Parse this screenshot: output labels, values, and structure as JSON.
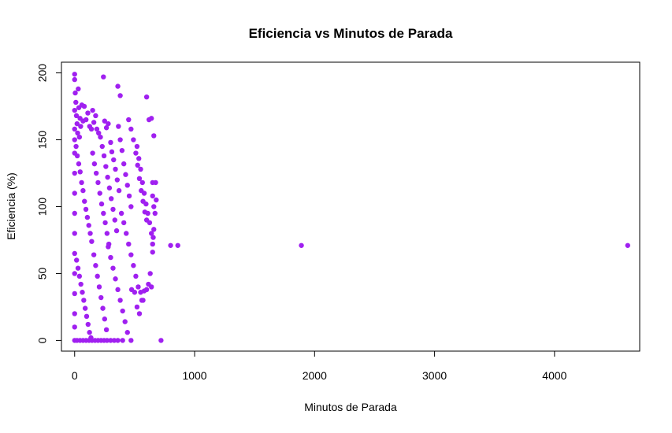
{
  "chart_data": {
    "type": "scatter",
    "title": "Eficiencia vs Minutos de Parada",
    "xlabel": "Minutos de Parada",
    "ylabel": "Eficiencia (%)",
    "xlim": [
      -110,
      4710
    ],
    "ylim": [
      -8,
      208
    ],
    "x_ticks": [
      0,
      1000,
      2000,
      3000,
      4000
    ],
    "y_ticks": [
      0,
      50,
      100,
      150,
      200
    ],
    "point_color": "#A020F0",
    "grid": false,
    "legend": "none",
    "series": [
      {
        "points": [
          [
            0,
            199
          ],
          [
            0,
            195
          ],
          [
            0,
            172
          ],
          [
            0,
            158
          ],
          [
            0,
            150
          ],
          [
            0,
            140
          ],
          [
            0,
            125
          ],
          [
            0,
            110
          ],
          [
            0,
            95
          ],
          [
            0,
            80
          ],
          [
            0,
            65
          ],
          [
            0,
            50
          ],
          [
            0,
            35
          ],
          [
            0,
            20
          ],
          [
            0,
            10
          ],
          [
            0,
            0
          ],
          [
            5,
            185
          ],
          [
            10,
            178
          ],
          [
            15,
            168
          ],
          [
            20,
            162
          ],
          [
            25,
            155
          ],
          [
            30,
            188
          ],
          [
            35,
            174
          ],
          [
            40,
            152
          ],
          [
            45,
            166
          ],
          [
            50,
            160
          ],
          [
            60,
            176
          ],
          [
            70,
            164
          ],
          [
            12,
            145
          ],
          [
            22,
            138
          ],
          [
            34,
            132
          ],
          [
            46,
            126
          ],
          [
            58,
            118
          ],
          [
            70,
            112
          ],
          [
            82,
            104
          ],
          [
            94,
            98
          ],
          [
            106,
            92
          ],
          [
            118,
            86
          ],
          [
            130,
            80
          ],
          [
            142,
            74
          ],
          [
            16,
            60
          ],
          [
            28,
            54
          ],
          [
            40,
            48
          ],
          [
            52,
            42
          ],
          [
            64,
            36
          ],
          [
            76,
            30
          ],
          [
            88,
            24
          ],
          [
            100,
            18
          ],
          [
            112,
            12
          ],
          [
            124,
            6
          ],
          [
            136,
            2
          ],
          [
            20,
            0
          ],
          [
            45,
            0
          ],
          [
            70,
            0
          ],
          [
            95,
            0
          ],
          [
            120,
            0
          ],
          [
            145,
            0
          ],
          [
            170,
            0
          ],
          [
            195,
            0
          ],
          [
            220,
            0
          ],
          [
            245,
            0
          ],
          [
            270,
            0
          ],
          [
            300,
            0
          ],
          [
            330,
            0
          ],
          [
            360,
            0
          ],
          [
            400,
            0
          ],
          [
            470,
            0
          ],
          [
            720,
            0
          ],
          [
            80,
            175
          ],
          [
            95,
            165
          ],
          [
            110,
            170
          ],
          [
            125,
            160
          ],
          [
            140,
            158
          ],
          [
            150,
            172
          ],
          [
            160,
            163
          ],
          [
            175,
            168
          ],
          [
            185,
            158
          ],
          [
            200,
            155
          ],
          [
            150,
            140
          ],
          [
            165,
            132
          ],
          [
            180,
            125
          ],
          [
            195,
            118
          ],
          [
            210,
            110
          ],
          [
            225,
            102
          ],
          [
            240,
            95
          ],
          [
            255,
            88
          ],
          [
            270,
            80
          ],
          [
            285,
            72
          ],
          [
            160,
            64
          ],
          [
            175,
            56
          ],
          [
            190,
            48
          ],
          [
            205,
            40
          ],
          [
            220,
            32
          ],
          [
            235,
            24
          ],
          [
            250,
            16
          ],
          [
            265,
            8
          ],
          [
            215,
            152
          ],
          [
            230,
            145
          ],
          [
            245,
            138
          ],
          [
            260,
            130
          ],
          [
            275,
            122
          ],
          [
            290,
            114
          ],
          [
            305,
            106
          ],
          [
            320,
            98
          ],
          [
            335,
            90
          ],
          [
            350,
            82
          ],
          [
            240,
            197
          ],
          [
            250,
            164
          ],
          [
            265,
            159
          ],
          [
            280,
            162
          ],
          [
            300,
            148
          ],
          [
            310,
            141
          ],
          [
            325,
            135
          ],
          [
            340,
            128
          ],
          [
            355,
            120
          ],
          [
            370,
            112
          ],
          [
            280,
            70
          ],
          [
            300,
            62
          ],
          [
            320,
            54
          ],
          [
            340,
            46
          ],
          [
            360,
            38
          ],
          [
            380,
            30
          ],
          [
            400,
            22
          ],
          [
            420,
            14
          ],
          [
            440,
            6
          ],
          [
            380,
            183
          ],
          [
            360,
            190
          ],
          [
            365,
            160
          ],
          [
            380,
            150
          ],
          [
            395,
            142
          ],
          [
            410,
            132
          ],
          [
            425,
            124
          ],
          [
            440,
            116
          ],
          [
            455,
            108
          ],
          [
            470,
            100
          ],
          [
            390,
            95
          ],
          [
            410,
            88
          ],
          [
            430,
            80
          ],
          [
            450,
            72
          ],
          [
            470,
            64
          ],
          [
            490,
            56
          ],
          [
            510,
            48
          ],
          [
            530,
            40
          ],
          [
            550,
            36
          ],
          [
            570,
            30
          ],
          [
            450,
            165
          ],
          [
            470,
            158
          ],
          [
            490,
            150
          ],
          [
            510,
            140
          ],
          [
            525,
            131
          ],
          [
            540,
            121
          ],
          [
            555,
            112
          ],
          [
            570,
            104
          ],
          [
            585,
            96
          ],
          [
            600,
            90
          ],
          [
            475,
            38
          ],
          [
            500,
            36
          ],
          [
            520,
            25
          ],
          [
            540,
            20
          ],
          [
            560,
            30
          ],
          [
            580,
            37
          ],
          [
            600,
            38
          ],
          [
            615,
            42
          ],
          [
            630,
            50
          ],
          [
            640,
            40
          ],
          [
            520,
            145
          ],
          [
            535,
            136
          ],
          [
            550,
            128
          ],
          [
            565,
            118
          ],
          [
            580,
            110
          ],
          [
            595,
            102
          ],
          [
            610,
            95
          ],
          [
            625,
            88
          ],
          [
            640,
            80
          ],
          [
            650,
            72
          ],
          [
            600,
            182
          ],
          [
            620,
            165
          ],
          [
            640,
            166
          ],
          [
            660,
            153
          ],
          [
            650,
            118
          ],
          [
            650,
            108
          ],
          [
            660,
            100
          ],
          [
            670,
            95
          ],
          [
            660,
            83
          ],
          [
            655,
            77
          ],
          [
            650,
            66
          ],
          [
            675,
            118
          ],
          [
            680,
            105
          ],
          [
            800,
            71
          ],
          [
            860,
            71
          ],
          [
            1890,
            71
          ],
          [
            4610,
            71
          ]
        ]
      }
    ]
  }
}
